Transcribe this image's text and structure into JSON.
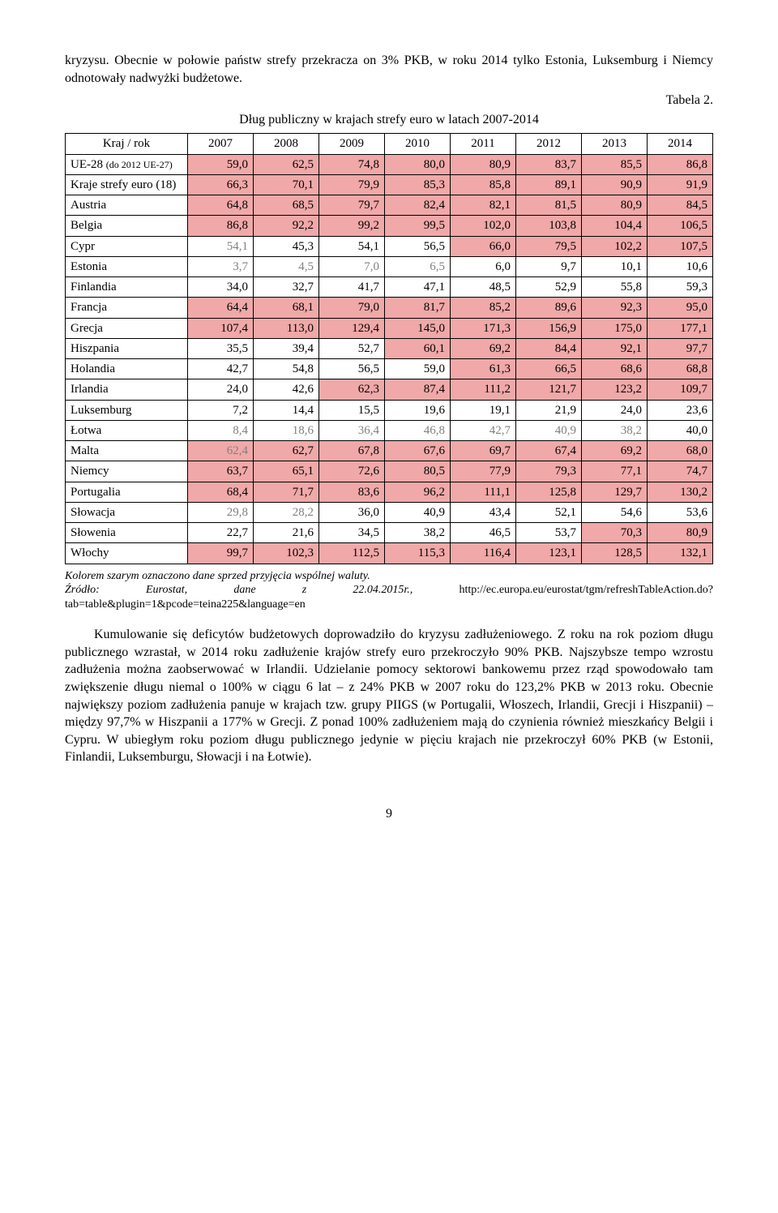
{
  "intro": "kryzysu. Obecnie w połowie państw strefy przekracza on 3% PKB, w roku 2014 tylko Estonia, Luksemburg i Niemcy odnotowały nadwyżki budżetowe.",
  "tabela_label": "Tabela 2.",
  "table_title": "Dług publiczny w krajach strefy euro w latach 2007-2014",
  "columns": [
    "Kraj / rok",
    "2007",
    "2008",
    "2009",
    "2010",
    "2011",
    "2012",
    "2013",
    "2014"
  ],
  "colors": {
    "highlight": "#f0a8a8",
    "gray": "#808080",
    "black": "#000000"
  },
  "rows": [
    {
      "label": "UE-28 (do 2012 UE-27)",
      "vals": [
        "59,0",
        "62,5",
        "74,8",
        "80,0",
        "80,9",
        "83,7",
        "85,5",
        "86,8"
      ],
      "hi": [
        1,
        1,
        1,
        1,
        1,
        1,
        1,
        1
      ],
      "gray": [
        0,
        0,
        0,
        0,
        0,
        0,
        0,
        0
      ],
      "label_small": true
    },
    {
      "label": "Kraje strefy euro (18)",
      "vals": [
        "66,3",
        "70,1",
        "79,9",
        "85,3",
        "85,8",
        "89,1",
        "90,9",
        "91,9"
      ],
      "hi": [
        1,
        1,
        1,
        1,
        1,
        1,
        1,
        1
      ],
      "gray": [
        0,
        0,
        0,
        0,
        0,
        0,
        0,
        0
      ]
    },
    {
      "label": "Austria",
      "vals": [
        "64,8",
        "68,5",
        "79,7",
        "82,4",
        "82,1",
        "81,5",
        "80,9",
        "84,5"
      ],
      "hi": [
        1,
        1,
        1,
        1,
        1,
        1,
        1,
        1
      ],
      "gray": [
        0,
        0,
        0,
        0,
        0,
        0,
        0,
        0
      ]
    },
    {
      "label": "Belgia",
      "vals": [
        "86,8",
        "92,2",
        "99,2",
        "99,5",
        "102,0",
        "103,8",
        "104,4",
        "106,5"
      ],
      "hi": [
        1,
        1,
        1,
        1,
        1,
        1,
        1,
        1
      ],
      "gray": [
        0,
        0,
        0,
        0,
        0,
        0,
        0,
        0
      ]
    },
    {
      "label": "Cypr",
      "vals": [
        "54,1",
        "45,3",
        "54,1",
        "56,5",
        "66,0",
        "79,5",
        "102,2",
        "107,5"
      ],
      "hi": [
        0,
        0,
        0,
        0,
        1,
        1,
        1,
        1
      ],
      "gray": [
        1,
        0,
        0,
        0,
        0,
        0,
        0,
        0
      ]
    },
    {
      "label": "Estonia",
      "vals": [
        "3,7",
        "4,5",
        "7,0",
        "6,5",
        "6,0",
        "9,7",
        "10,1",
        "10,6"
      ],
      "hi": [
        0,
        0,
        0,
        0,
        0,
        0,
        0,
        0
      ],
      "gray": [
        1,
        1,
        1,
        1,
        0,
        0,
        0,
        0
      ]
    },
    {
      "label": "Finlandia",
      "vals": [
        "34,0",
        "32,7",
        "41,7",
        "47,1",
        "48,5",
        "52,9",
        "55,8",
        "59,3"
      ],
      "hi": [
        0,
        0,
        0,
        0,
        0,
        0,
        0,
        0
      ],
      "gray": [
        0,
        0,
        0,
        0,
        0,
        0,
        0,
        0
      ]
    },
    {
      "label": "Francja",
      "vals": [
        "64,4",
        "68,1",
        "79,0",
        "81,7",
        "85,2",
        "89,6",
        "92,3",
        "95,0"
      ],
      "hi": [
        1,
        1,
        1,
        1,
        1,
        1,
        1,
        1
      ],
      "gray": [
        0,
        0,
        0,
        0,
        0,
        0,
        0,
        0
      ]
    },
    {
      "label": "Grecja",
      "vals": [
        "107,4",
        "113,0",
        "129,4",
        "145,0",
        "171,3",
        "156,9",
        "175,0",
        "177,1"
      ],
      "hi": [
        1,
        1,
        1,
        1,
        1,
        1,
        1,
        1
      ],
      "gray": [
        0,
        0,
        0,
        0,
        0,
        0,
        0,
        0
      ]
    },
    {
      "label": "Hiszpania",
      "vals": [
        "35,5",
        "39,4",
        "52,7",
        "60,1",
        "69,2",
        "84,4",
        "92,1",
        "97,7"
      ],
      "hi": [
        0,
        0,
        0,
        1,
        1,
        1,
        1,
        1
      ],
      "gray": [
        0,
        0,
        0,
        0,
        0,
        0,
        0,
        0
      ]
    },
    {
      "label": "Holandia",
      "vals": [
        "42,7",
        "54,8",
        "56,5",
        "59,0",
        "61,3",
        "66,5",
        "68,6",
        "68,8"
      ],
      "hi": [
        0,
        0,
        0,
        0,
        1,
        1,
        1,
        1
      ],
      "gray": [
        0,
        0,
        0,
        0,
        0,
        0,
        0,
        0
      ]
    },
    {
      "label": "Irlandia",
      "vals": [
        "24,0",
        "42,6",
        "62,3",
        "87,4",
        "111,2",
        "121,7",
        "123,2",
        "109,7"
      ],
      "hi": [
        0,
        0,
        1,
        1,
        1,
        1,
        1,
        1
      ],
      "gray": [
        0,
        0,
        0,
        0,
        0,
        0,
        0,
        0
      ]
    },
    {
      "label": "Luksemburg",
      "vals": [
        "7,2",
        "14,4",
        "15,5",
        "19,6",
        "19,1",
        "21,9",
        "24,0",
        "23,6"
      ],
      "hi": [
        0,
        0,
        0,
        0,
        0,
        0,
        0,
        0
      ],
      "gray": [
        0,
        0,
        0,
        0,
        0,
        0,
        0,
        0
      ]
    },
    {
      "label": "Łotwa",
      "vals": [
        "8,4",
        "18,6",
        "36,4",
        "46,8",
        "42,7",
        "40,9",
        "38,2",
        "40,0"
      ],
      "hi": [
        0,
        0,
        0,
        0,
        0,
        0,
        0,
        0
      ],
      "gray": [
        1,
        1,
        1,
        1,
        1,
        1,
        1,
        0
      ]
    },
    {
      "label": "Malta",
      "vals": [
        "62,4",
        "62,7",
        "67,8",
        "67,6",
        "69,7",
        "67,4",
        "69,2",
        "68,0"
      ],
      "hi": [
        1,
        1,
        1,
        1,
        1,
        1,
        1,
        1
      ],
      "gray": [
        1,
        0,
        0,
        0,
        0,
        0,
        0,
        0
      ]
    },
    {
      "label": "Niemcy",
      "vals": [
        "63,7",
        "65,1",
        "72,6",
        "80,5",
        "77,9",
        "79,3",
        "77,1",
        "74,7"
      ],
      "hi": [
        1,
        1,
        1,
        1,
        1,
        1,
        1,
        1
      ],
      "gray": [
        0,
        0,
        0,
        0,
        0,
        0,
        0,
        0
      ]
    },
    {
      "label": "Portugalia",
      "vals": [
        "68,4",
        "71,7",
        "83,6",
        "96,2",
        "111,1",
        "125,8",
        "129,7",
        "130,2"
      ],
      "hi": [
        1,
        1,
        1,
        1,
        1,
        1,
        1,
        1
      ],
      "gray": [
        0,
        0,
        0,
        0,
        0,
        0,
        0,
        0
      ]
    },
    {
      "label": "Słowacja",
      "vals": [
        "29,8",
        "28,2",
        "36,0",
        "40,9",
        "43,4",
        "52,1",
        "54,6",
        "53,6"
      ],
      "hi": [
        0,
        0,
        0,
        0,
        0,
        0,
        0,
        0
      ],
      "gray": [
        1,
        1,
        0,
        0,
        0,
        0,
        0,
        0
      ]
    },
    {
      "label": "Słowenia",
      "vals": [
        "22,7",
        "21,6",
        "34,5",
        "38,2",
        "46,5",
        "53,7",
        "70,3",
        "80,9"
      ],
      "hi": [
        0,
        0,
        0,
        0,
        0,
        0,
        1,
        1
      ],
      "gray": [
        0,
        0,
        0,
        0,
        0,
        0,
        0,
        0
      ]
    },
    {
      "label": "Włochy",
      "vals": [
        "99,7",
        "102,3",
        "112,5",
        "115,3",
        "116,4",
        "123,1",
        "128,5",
        "132,1"
      ],
      "hi": [
        1,
        1,
        1,
        1,
        1,
        1,
        1,
        1
      ],
      "gray": [
        0,
        0,
        0,
        0,
        0,
        0,
        0,
        0
      ]
    }
  ],
  "footnote": {
    "l1_italic": "Kolorem szarym oznaczono dane sprzed przyjęcia wspólnej waluty.",
    "l2_italic_prefix": "Źródło: Eurostat, dane z 22.04.2015r., ",
    "l2_link": "http://ec.europa.eu/eurostat/tgm/refreshTableAction.do?tab=table&plugin=1&pcode=teina225&language=en"
  },
  "body": "Kumulowanie się deficytów budżetowych doprowadziło do kryzysu zadłużeniowego. Z roku na rok poziom długu publicznego wzrastał, w 2014 roku zadłużenie krajów strefy euro przekroczyło 90% PKB. Najszybsze tempo wzrostu zadłużenia można zaobserwować w Irlandii. Udzielanie pomocy sektorowi bankowemu przez rząd spowodowało tam zwiększenie długu niemal o 100% w ciągu 6 lat – z 24% PKB w 2007 roku do 123,2% PKB w 2013 roku. Obecnie największy poziom zadłużenia panuje w krajach tzw. grupy PIIGS (w Portugalii, Włoszech, Irlandii, Grecji i Hiszpanii) – między 97,7% w Hiszpanii a 177% w Grecji. Z ponad 100% zadłużeniem mają do czynienia również mieszkańcy Belgii i Cypru. W ubiegłym roku poziom długu publicznego jedynie w pięciu krajach nie przekroczył 60% PKB (w Estonii, Finlandii, Luksemburgu, Słowacji i na Łotwie).",
  "page_number": "9"
}
